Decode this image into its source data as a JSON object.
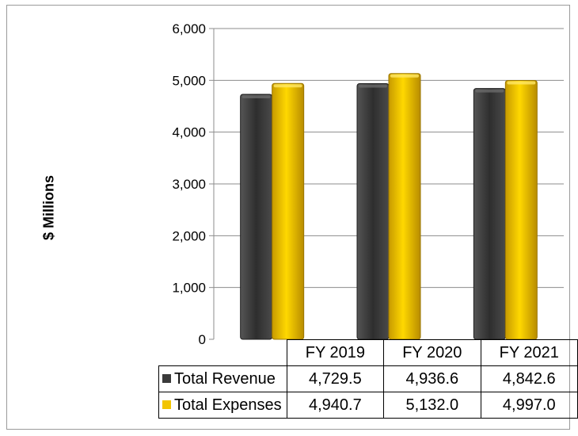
{
  "chart_data": {
    "type": "bar",
    "ylabel": "$ Millions",
    "ylim": [
      0,
      6000
    ],
    "yticks": [
      "0",
      "1,000",
      "2,000",
      "3,000",
      "4,000",
      "5,000",
      "6,000"
    ],
    "categories": [
      "FY 2019",
      "FY 2020",
      "FY 2021"
    ],
    "series": [
      {
        "name": "Total Revenue",
        "color": "#3a3a3a",
        "values": [
          4729.5,
          4936.6,
          4842.6
        ],
        "labels": [
          "4,729.5",
          "4,936.6",
          "4,842.6"
        ]
      },
      {
        "name": "Total Expenses",
        "color": "#f2c500",
        "values": [
          4940.7,
          5132.0,
          4997.0
        ],
        "labels": [
          "4,940.7",
          "5,132.0",
          "4,997.0"
        ]
      }
    ],
    "grid": true,
    "legend": "data-table"
  }
}
